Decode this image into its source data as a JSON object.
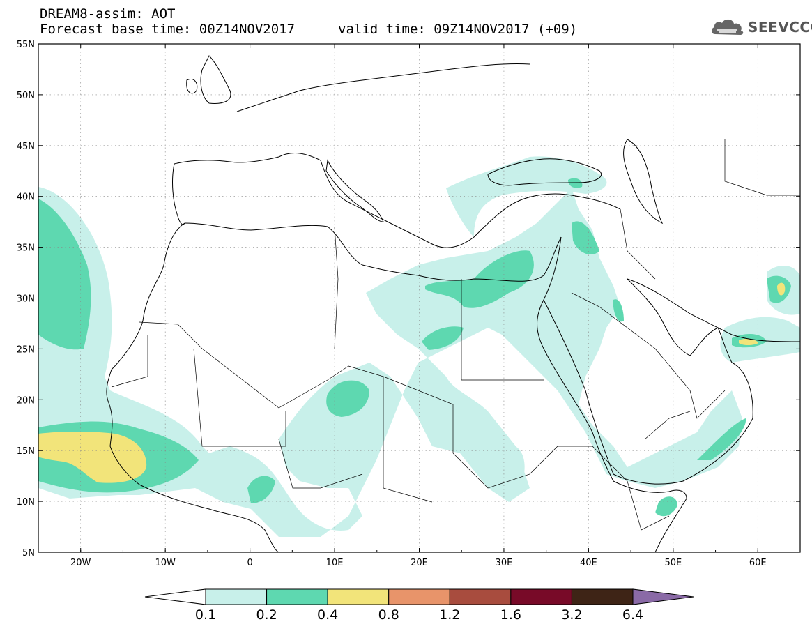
{
  "header": {
    "title": "DREAM8-assim: AOT",
    "forecast_base": "Forecast base time: 00Z14NOV2017",
    "valid_time": "valid time: 09Z14NOV2017 (+09)"
  },
  "logo": {
    "text": "SEEVCCC",
    "icon": "cloud-icon"
  },
  "map": {
    "lon_range": [
      -25,
      65
    ],
    "lat_range": [
      5,
      55
    ],
    "lon_ticks": [
      {
        "value": -20,
        "label": "20W"
      },
      {
        "value": -10,
        "label": "10W"
      },
      {
        "value": 0,
        "label": "0"
      },
      {
        "value": 10,
        "label": "10E"
      },
      {
        "value": 20,
        "label": "20E"
      },
      {
        "value": 30,
        "label": "30E"
      },
      {
        "value": 40,
        "label": "40E"
      },
      {
        "value": 50,
        "label": "50E"
      },
      {
        "value": 60,
        "label": "60E"
      }
    ],
    "lat_ticks": [
      {
        "value": 5,
        "label": "5N"
      },
      {
        "value": 10,
        "label": "10N"
      },
      {
        "value": 15,
        "label": "15N"
      },
      {
        "value": 20,
        "label": "20N"
      },
      {
        "value": 25,
        "label": "25N"
      },
      {
        "value": 30,
        "label": "30N"
      },
      {
        "value": 35,
        "label": "35N"
      },
      {
        "value": 40,
        "label": "40N"
      },
      {
        "value": 45,
        "label": "45N"
      },
      {
        "value": 50,
        "label": "50N"
      },
      {
        "value": 55,
        "label": "55N"
      }
    ],
    "grid": "dotted"
  },
  "colorbar": {
    "levels": [
      "0.1",
      "0.2",
      "0.4",
      "0.8",
      "1.2",
      "1.6",
      "3.2",
      "6.4"
    ],
    "colors": [
      "#ffffff",
      "#c8f0ea",
      "#5ed8b0",
      "#f2e47a",
      "#e8946a",
      "#a84c3e",
      "#780a28",
      "#3e2416",
      "#8a6aa6"
    ]
  }
}
